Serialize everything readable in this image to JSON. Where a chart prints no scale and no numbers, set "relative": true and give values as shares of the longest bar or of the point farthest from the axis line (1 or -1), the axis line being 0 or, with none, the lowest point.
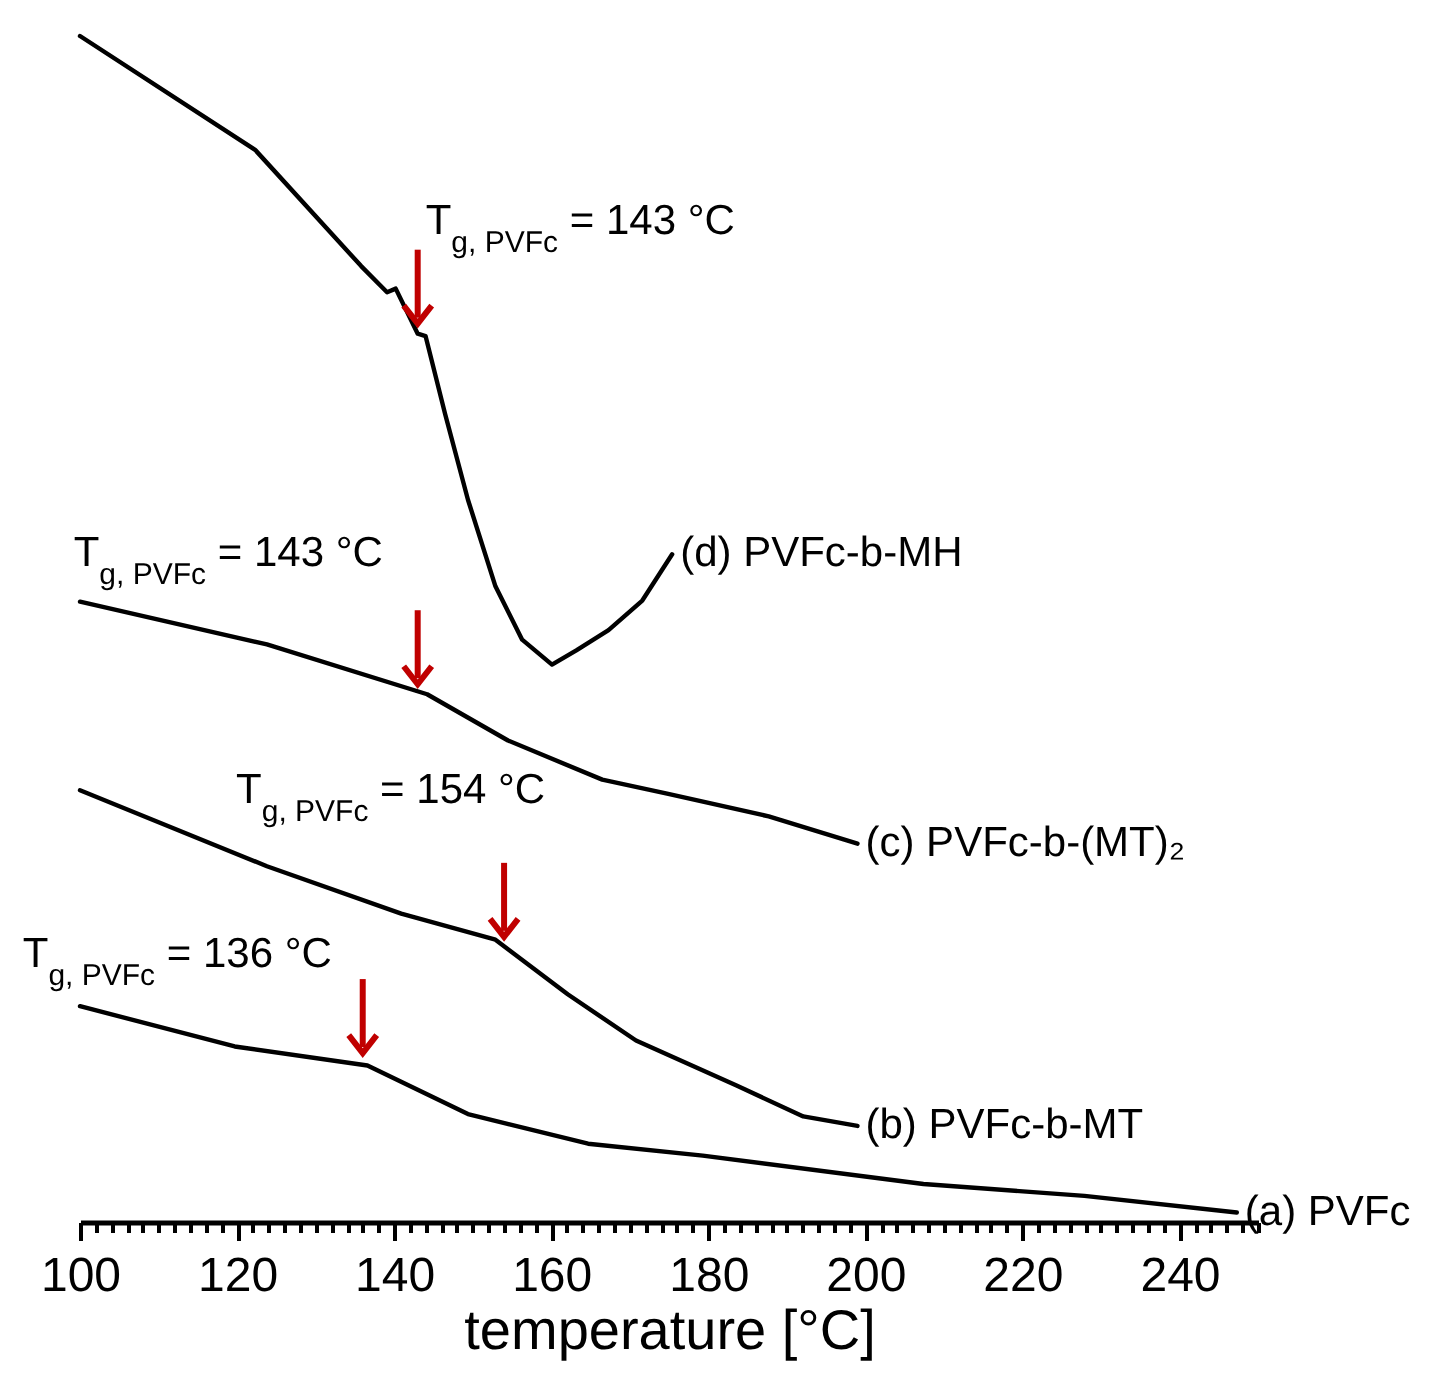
{
  "chart_data": {
    "type": "line",
    "relative": true,
    "xlabel": "temperature [°C]",
    "xlim": [
      100,
      250
    ],
    "xticks": [
      100,
      {
        "value": 102,
        "label": null
      },
      {
        "value": 104,
        "label": null
      },
      {
        "value": 106,
        "label": null
      },
      {
        "value": 108,
        "label": null
      },
      {
        "value": 110,
        "label": null
      },
      {
        "value": 112,
        "label": null
      },
      {
        "value": 114,
        "label": null
      },
      {
        "value": 116,
        "label": null
      },
      {
        "value": 118,
        "label": null
      },
      120,
      {
        "value": 122,
        "label": null
      },
      {
        "value": 124,
        "label": null
      },
      {
        "value": 126,
        "label": null
      },
      {
        "value": 128,
        "label": null
      },
      {
        "value": 130,
        "label": null
      },
      {
        "value": 132,
        "label": null
      },
      {
        "value": 134,
        "label": null
      },
      {
        "value": 136,
        "label": null
      },
      {
        "value": 138,
        "label": null
      },
      140,
      {
        "value": 142,
        "label": null
      },
      {
        "value": 144,
        "label": null
      },
      {
        "value": 146,
        "label": null
      },
      {
        "value": 148,
        "label": null
      },
      {
        "value": 150,
        "label": null
      },
      {
        "value": 152,
        "label": null
      },
      {
        "value": 154,
        "label": null
      },
      {
        "value": 156,
        "label": null
      },
      {
        "value": 158,
        "label": null
      },
      160,
      {
        "value": 162,
        "label": null
      },
      {
        "value": 164,
        "label": null
      },
      {
        "value": 166,
        "label": null
      },
      {
        "value": 168,
        "label": null
      },
      {
        "value": 170,
        "label": null
      },
      {
        "value": 172,
        "label": null
      },
      {
        "value": 174,
        "label": null
      },
      {
        "value": 176,
        "label": null
      },
      {
        "value": 178,
        "label": null
      },
      180,
      {
        "value": 182,
        "label": null
      },
      {
        "value": 184,
        "label": null
      },
      {
        "value": 186,
        "label": null
      },
      {
        "value": 188,
        "label": null
      },
      {
        "value": 190,
        "label": null
      },
      {
        "value": 192,
        "label": null
      },
      {
        "value": 194,
        "label": null
      },
      {
        "value": 196,
        "label": null
      },
      {
        "value": 198,
        "label": null
      },
      200,
      {
        "value": 202,
        "label": null
      },
      {
        "value": 204,
        "label": null
      },
      {
        "value": 206,
        "label": null
      },
      {
        "value": 208,
        "label": null
      },
      {
        "value": 210,
        "label": null
      },
      {
        "value": 212,
        "label": null
      },
      {
        "value": 214,
        "label": null
      },
      {
        "value": 216,
        "label": null
      },
      {
        "value": 218,
        "label": null
      },
      220,
      {
        "value": 222,
        "label": null
      },
      {
        "value": 224,
        "label": null
      },
      {
        "value": 226,
        "label": null
      },
      {
        "value": 228,
        "label": null
      },
      {
        "value": 230,
        "label": null
      },
      {
        "value": 232,
        "label": null
      },
      {
        "value": 234,
        "label": null
      },
      {
        "value": 236,
        "label": null
      },
      {
        "value": 238,
        "label": null
      },
      240,
      {
        "value": 242,
        "label": null
      },
      {
        "value": 244,
        "label": null
      },
      {
        "value": 246,
        "label": null
      },
      {
        "value": 248,
        "label": null
      },
      {
        "value": 250,
        "label": null
      }
    ],
    "grid": false,
    "marker": "none",
    "line_style": "solid",
    "series": [
      {
        "name": "(a) PVFc",
        "color": "#000000",
        "x": [
          100,
          119.7,
          136.6,
          149.4,
          164.7,
          179.3,
          207.4,
          227.9,
          247.3
        ],
        "values": [
          0.182,
          0.148,
          0.132,
          0.091,
          0.066,
          0.056,
          0.032,
          0.022,
          0.008
        ]
      },
      {
        "name": "(b) PVFc-b-MT",
        "color": "#000000",
        "x": [
          100,
          123.8,
          140.9,
          152.9,
          162.1,
          170.8,
          183.6,
          192.1,
          199
        ],
        "values": [
          0.364,
          0.3,
          0.26,
          0.238,
          0.192,
          0.153,
          0.115,
          0.089,
          0.081
        ]
      },
      {
        "name": "(c) PVFc-b-(MT)₂",
        "color": "#000000",
        "x": [
          100,
          123.8,
          144.2,
          154.5,
          166.5,
          174.9,
          187.7,
          199
        ],
        "values": [
          0.523,
          0.487,
          0.445,
          0.406,
          0.373,
          0.361,
          0.342,
          0.319
        ]
      },
      {
        "name": "(d) PVFc-b-MH",
        "color": "#000000",
        "x": [
          100,
          122.3,
          135.8,
          139.1,
          140.2,
          143,
          144,
          146.5,
          149.4,
          152.9,
          156.3,
          160.1,
          163.2,
          167.3,
          171.6,
          175.4
        ],
        "values": [
          1.0,
          0.904,
          0.806,
          0.784,
          0.787,
          0.749,
          0.747,
          0.681,
          0.609,
          0.536,
          0.491,
          0.47,
          0.482,
          0.499,
          0.524,
          0.563
        ]
      }
    ],
    "annotations": [
      {
        "text": "T$_{g, PVFc}$ = 136 °C",
        "x": 136,
        "y": 0.134
      },
      {
        "text": "T$_{g, PVFc}$ = 154 °C",
        "x": 154,
        "y": 0.232
      },
      {
        "text": "T$_{g, PVFc}$ = 143 °C",
        "x": 143,
        "y": 0.445
      },
      {
        "text": "T$_{g, PVFc}$ = 143 °C",
        "x": 143,
        "y": 0.749
      }
    ]
  }
}
